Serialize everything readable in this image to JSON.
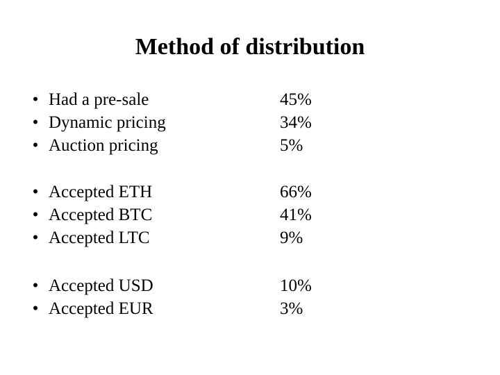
{
  "title": "Method of distribution",
  "bullet_char": "•",
  "groups": [
    {
      "items": [
        {
          "label": "Had a pre-sale",
          "value": "45%"
        },
        {
          "label": "Dynamic pricing",
          "value": "34%"
        },
        {
          "label": "Auction pricing",
          "value": "5%"
        }
      ]
    },
    {
      "items": [
        {
          "label": "Accepted ETH",
          "value": "66%"
        },
        {
          "label": "Accepted BTC",
          "value": "41%"
        },
        {
          "label": "Accepted LTC",
          "value": "9%"
        }
      ]
    },
    {
      "items": [
        {
          "label": "Accepted USD",
          "value": "10%"
        },
        {
          "label": "Accepted EUR",
          "value": "3%"
        }
      ]
    }
  ]
}
